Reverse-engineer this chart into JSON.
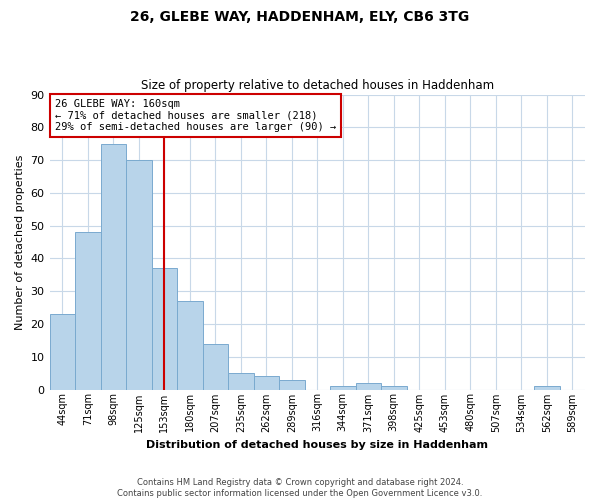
{
  "title": "26, GLEBE WAY, HADDENHAM, ELY, CB6 3TG",
  "subtitle": "Size of property relative to detached houses in Haddenham",
  "xlabel": "Distribution of detached houses by size in Haddenham",
  "ylabel": "Number of detached properties",
  "bar_color": "#b8d4ea",
  "bar_edge_color": "#7aaacf",
  "background_color": "#ffffff",
  "grid_color": "#c8d8e8",
  "bin_labels": [
    "44sqm",
    "71sqm",
    "98sqm",
    "125sqm",
    "153sqm",
    "180sqm",
    "207sqm",
    "235sqm",
    "262sqm",
    "289sqm",
    "316sqm",
    "344sqm",
    "371sqm",
    "398sqm",
    "425sqm",
    "453sqm",
    "480sqm",
    "507sqm",
    "534sqm",
    "562sqm",
    "589sqm"
  ],
  "bar_heights": [
    23,
    48,
    75,
    70,
    37,
    27,
    14,
    5,
    4,
    3,
    0,
    1,
    2,
    1,
    0,
    0,
    0,
    0,
    0,
    1,
    0
  ],
  "ylim": [
    0,
    90
  ],
  "yticks": [
    0,
    10,
    20,
    30,
    40,
    50,
    60,
    70,
    80,
    90
  ],
  "property_line_x": 4.0,
  "property_line_color": "#cc0000",
  "annotation_line1": "26 GLEBE WAY: 160sqm",
  "annotation_line2": "← 71% of detached houses are smaller (218)",
  "annotation_line3": "29% of semi-detached houses are larger (90) →",
  "annotation_box_color": "#ffffff",
  "annotation_box_edge": "#cc0000",
  "footer_text": "Contains HM Land Registry data © Crown copyright and database right 2024.\nContains public sector information licensed under the Open Government Licence v3.0."
}
